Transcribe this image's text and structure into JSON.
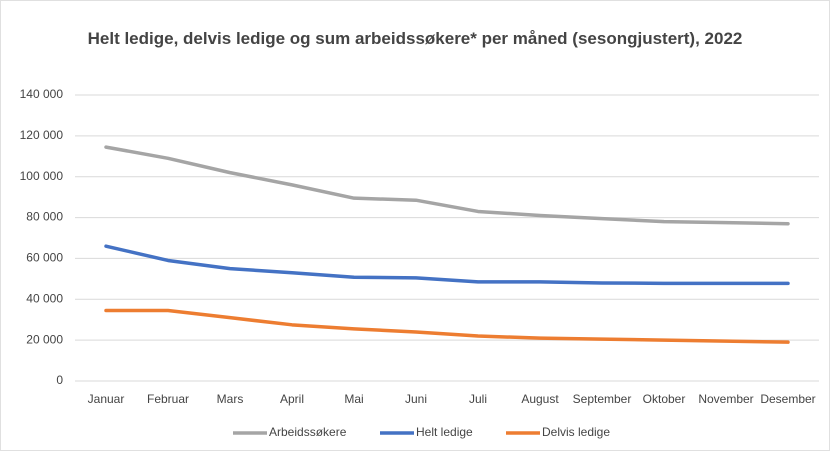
{
  "chart_data": {
    "type": "line",
    "title": "Helt ledige, delvis ledige og sum arbeidssøkere* per måned (sesongjustert), 2022",
    "categories": [
      "Januar",
      "Februar",
      "Mars",
      "April",
      "Mai",
      "Juni",
      "Juli",
      "August",
      "September",
      "Oktober",
      "November",
      "Desember"
    ],
    "series": [
      {
        "name": "Arbeidssøkere",
        "color": "#a5a5a5",
        "values": [
          114500,
          109000,
          102000,
          96000,
          89500,
          88500,
          83000,
          81000,
          79500,
          78000,
          77500,
          77000
        ]
      },
      {
        "name": "Helt ledige",
        "color": "#4472c4",
        "values": [
          66000,
          59000,
          55000,
          53000,
          50800,
          50500,
          48500,
          48500,
          48000,
          47800,
          47800,
          47800
        ]
      },
      {
        "name": "Delvis ledige",
        "color": "#ed7d31",
        "values": [
          34500,
          34500,
          31000,
          27500,
          25500,
          24000,
          22000,
          21000,
          20500,
          20000,
          19500,
          19000
        ]
      }
    ],
    "ylim": [
      0,
      140000
    ],
    "yticks": [
      0,
      {
        "value": 20000,
        "label": "20 000"
      },
      {
        "value": 40000,
        "label": "40 000"
      },
      {
        "value": 60000,
        "label": "60 000"
      },
      {
        "value": 80000,
        "label": "80 000"
      },
      {
        "value": 100000,
        "label": "100 000"
      },
      {
        "value": 120000,
        "label": "120 000"
      },
      {
        "value": 140000,
        "label": "140 000"
      }
    ],
    "grid": true,
    "legend": "bottom"
  }
}
